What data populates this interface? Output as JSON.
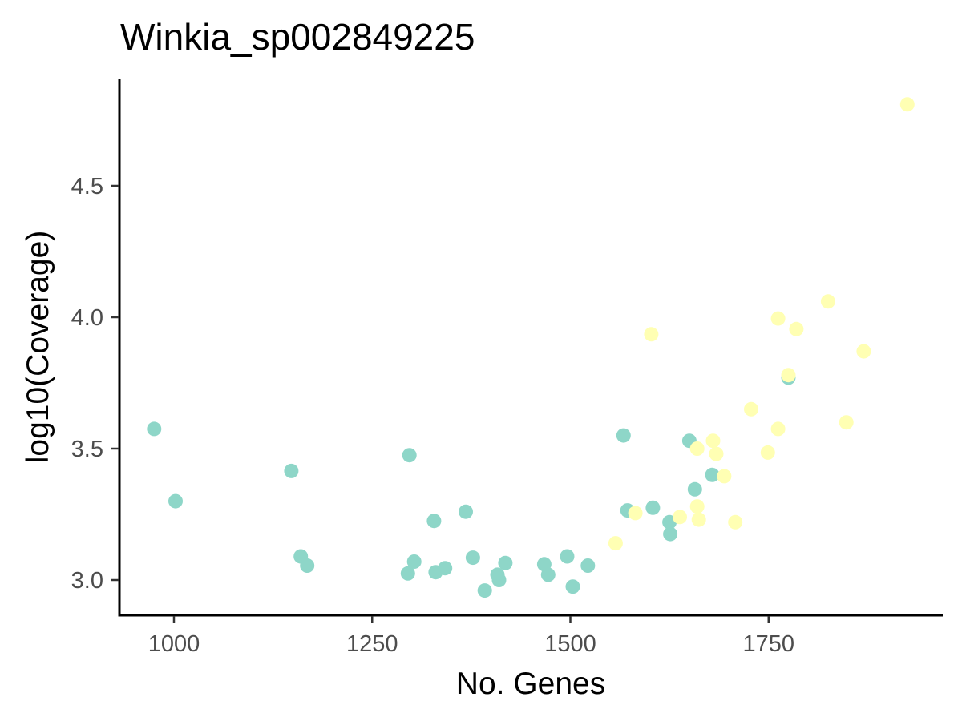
{
  "chart_data": {
    "type": "scatter",
    "title": "Winkia_sp002849225",
    "xlabel": "No. Genes",
    "ylabel": "log10(Coverage)",
    "xlim": [
      930,
      1975
    ],
    "ylim": [
      2.87,
      4.9
    ],
    "xticks": [
      "1000",
      "1250",
      "1500",
      "1750"
    ],
    "yticks": [
      "3.0",
      "3.5",
      "4.0",
      "4.5"
    ],
    "grid": false,
    "legend": "none",
    "series": [
      {
        "color": "#8ed6c8",
        "points": [
          [
            975,
            3.575
          ],
          [
            1002,
            3.3
          ],
          [
            1148,
            3.415
          ],
          [
            1160,
            3.09
          ],
          [
            1168,
            3.055
          ],
          [
            1297,
            3.475
          ],
          [
            1295,
            3.025
          ],
          [
            1303,
            3.07
          ],
          [
            1328,
            3.225
          ],
          [
            1330,
            3.03
          ],
          [
            1342,
            3.045
          ],
          [
            1368,
            3.26
          ],
          [
            1377,
            3.085
          ],
          [
            1392,
            2.96
          ],
          [
            1408,
            3.02
          ],
          [
            1410,
            3.0
          ],
          [
            1418,
            3.065
          ],
          [
            1467,
            3.06
          ],
          [
            1472,
            3.02
          ],
          [
            1496,
            3.09
          ],
          [
            1503,
            2.975
          ],
          [
            1522,
            3.055
          ],
          [
            1567,
            3.55
          ],
          [
            1572,
            3.265
          ],
          [
            1604,
            3.275
          ],
          [
            1625,
            3.22
          ],
          [
            1626,
            3.175
          ],
          [
            1650,
            3.53
          ],
          [
            1657,
            3.345
          ],
          [
            1679,
            3.4
          ],
          [
            1775,
            3.77
          ]
        ]
      },
      {
        "color": "#ffffb3",
        "points": [
          [
            1925,
            4.81
          ],
          [
            1825,
            4.06
          ],
          [
            1762,
            3.995
          ],
          [
            1785,
            3.955
          ],
          [
            1602,
            3.935
          ],
          [
            1870,
            3.87
          ],
          [
            1775,
            3.78
          ],
          [
            1728,
            3.65
          ],
          [
            1848,
            3.6
          ],
          [
            1762,
            3.575
          ],
          [
            1680,
            3.53
          ],
          [
            1660,
            3.5
          ],
          [
            1684,
            3.48
          ],
          [
            1749,
            3.485
          ],
          [
            1694,
            3.395
          ],
          [
            1660,
            3.28
          ],
          [
            1582,
            3.255
          ],
          [
            1638,
            3.24
          ],
          [
            1662,
            3.23
          ],
          [
            1708,
            3.22
          ],
          [
            1557,
            3.14
          ]
        ]
      }
    ]
  }
}
